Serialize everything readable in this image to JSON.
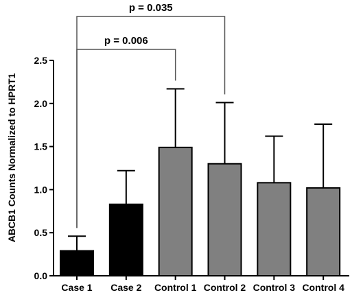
{
  "chart_data": {
    "type": "bar",
    "title": "",
    "xlabel": "",
    "ylabel": "ABCB1 Counts Normalized to HPRT1",
    "ylim": [
      0,
      2.5
    ],
    "yticks": [
      "0.0",
      "0.5",
      "1.0",
      "1.5",
      "2.0",
      "2.5"
    ],
    "ytick_values": [
      0,
      0.5,
      1.0,
      1.5,
      2.0,
      2.5
    ],
    "categories": [
      "Case 1",
      "Case 2",
      "Control 1",
      "Control 2",
      "Control 3",
      "Control 4"
    ],
    "values": [
      0.29,
      0.83,
      1.49,
      1.3,
      1.08,
      1.02
    ],
    "error_upper": [
      0.46,
      1.22,
      2.17,
      2.01,
      1.62,
      1.76
    ],
    "colors": [
      "#000000",
      "#000000",
      "#808080",
      "#808080",
      "#808080",
      "#808080"
    ],
    "grid": false,
    "legend": "none",
    "annotations": [
      {
        "text": "p = 0.006",
        "from": "Case 1",
        "to": "Control 1"
      },
      {
        "text": "p = 0.035",
        "from": "Case 1",
        "to": "Control 2"
      }
    ]
  }
}
